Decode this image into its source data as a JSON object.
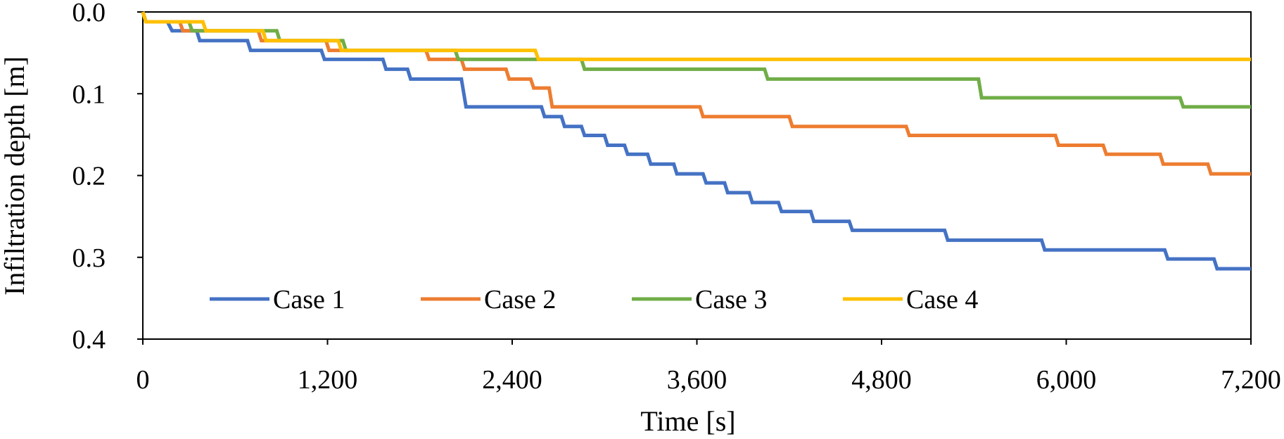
{
  "chart_data": {
    "type": "line",
    "line_style": "step",
    "xlabel": "Time [s]",
    "ylabel": "Infiltration depth [m]",
    "xlim": [
      0,
      7200
    ],
    "ylim": [
      0,
      0.4
    ],
    "y_inverted": true,
    "x_ticks": [
      0,
      1200,
      2400,
      3600,
      4800,
      6000,
      7200
    ],
    "x_tick_labels": [
      "0",
      "1,200",
      "2,400",
      "3,600",
      "4,800",
      "6,000",
      "7,200"
    ],
    "y_ticks": [
      0,
      0.1,
      0.2,
      0.3,
      0.4
    ],
    "y_tick_labels": [
      "0.0",
      "0.1",
      "0.2",
      "0.3",
      "0.4"
    ],
    "grid": false,
    "legend_position": "bottom-inside",
    "series": [
      {
        "name": "Case 1",
        "color": "#4472C4",
        "points": [
          [
            0,
            0
          ],
          [
            20,
            0.012
          ],
          [
            160,
            0.012
          ],
          [
            190,
            0.023
          ],
          [
            350,
            0.023
          ],
          [
            370,
            0.035
          ],
          [
            680,
            0.035
          ],
          [
            700,
            0.047
          ],
          [
            1160,
            0.047
          ],
          [
            1180,
            0.058
          ],
          [
            1560,
            0.058
          ],
          [
            1580,
            0.07
          ],
          [
            1720,
            0.07
          ],
          [
            1740,
            0.082
          ],
          [
            2070,
            0.082
          ],
          [
            2100,
            0.116
          ],
          [
            2590,
            0.116
          ],
          [
            2610,
            0.128
          ],
          [
            2720,
            0.128
          ],
          [
            2740,
            0.14
          ],
          [
            2850,
            0.14
          ],
          [
            2870,
            0.151
          ],
          [
            3000,
            0.151
          ],
          [
            3020,
            0.163
          ],
          [
            3130,
            0.163
          ],
          [
            3150,
            0.174
          ],
          [
            3280,
            0.174
          ],
          [
            3300,
            0.186
          ],
          [
            3450,
            0.186
          ],
          [
            3470,
            0.198
          ],
          [
            3640,
            0.198
          ],
          [
            3660,
            0.209
          ],
          [
            3780,
            0.209
          ],
          [
            3800,
            0.221
          ],
          [
            3940,
            0.221
          ],
          [
            3960,
            0.233
          ],
          [
            4130,
            0.233
          ],
          [
            4150,
            0.244
          ],
          [
            4340,
            0.244
          ],
          [
            4360,
            0.256
          ],
          [
            4590,
            0.256
          ],
          [
            4610,
            0.267
          ],
          [
            5210,
            0.267
          ],
          [
            5230,
            0.279
          ],
          [
            5840,
            0.279
          ],
          [
            5860,
            0.291
          ],
          [
            6640,
            0.291
          ],
          [
            6660,
            0.302
          ],
          [
            6960,
            0.302
          ],
          [
            6980,
            0.314
          ],
          [
            7200,
            0.314
          ]
        ]
      },
      {
        "name": "Case 2",
        "color": "#ED7D31",
        "points": [
          [
            0,
            0
          ],
          [
            20,
            0.012
          ],
          [
            240,
            0.012
          ],
          [
            260,
            0.023
          ],
          [
            750,
            0.023
          ],
          [
            770,
            0.035
          ],
          [
            1190,
            0.035
          ],
          [
            1210,
            0.047
          ],
          [
            1840,
            0.047
          ],
          [
            1860,
            0.058
          ],
          [
            2070,
            0.058
          ],
          [
            2090,
            0.07
          ],
          [
            2360,
            0.07
          ],
          [
            2380,
            0.082
          ],
          [
            2520,
            0.082
          ],
          [
            2540,
            0.093
          ],
          [
            2640,
            0.093
          ],
          [
            2660,
            0.116
          ],
          [
            3620,
            0.116
          ],
          [
            3640,
            0.128
          ],
          [
            4200,
            0.128
          ],
          [
            4220,
            0.14
          ],
          [
            4960,
            0.14
          ],
          [
            4980,
            0.151
          ],
          [
            5930,
            0.151
          ],
          [
            5950,
            0.163
          ],
          [
            6240,
            0.163
          ],
          [
            6260,
            0.174
          ],
          [
            6610,
            0.174
          ],
          [
            6630,
            0.186
          ],
          [
            6920,
            0.186
          ],
          [
            6940,
            0.198
          ],
          [
            7200,
            0.198
          ]
        ]
      },
      {
        "name": "Case 3",
        "color": "#70AD47",
        "points": [
          [
            0,
            0
          ],
          [
            20,
            0.012
          ],
          [
            300,
            0.012
          ],
          [
            320,
            0.023
          ],
          [
            870,
            0.023
          ],
          [
            890,
            0.035
          ],
          [
            1300,
            0.035
          ],
          [
            1320,
            0.047
          ],
          [
            2030,
            0.047
          ],
          [
            2050,
            0.058
          ],
          [
            2850,
            0.058
          ],
          [
            2870,
            0.07
          ],
          [
            4040,
            0.07
          ],
          [
            4060,
            0.082
          ],
          [
            5430,
            0.082
          ],
          [
            5450,
            0.105
          ],
          [
            6740,
            0.105
          ],
          [
            6760,
            0.116
          ],
          [
            7200,
            0.116
          ]
        ]
      },
      {
        "name": "Case 4",
        "color": "#FFC000",
        "points": [
          [
            0,
            0
          ],
          [
            20,
            0.012
          ],
          [
            390,
            0.012
          ],
          [
            410,
            0.023
          ],
          [
            780,
            0.023
          ],
          [
            800,
            0.035
          ],
          [
            1270,
            0.035
          ],
          [
            1290,
            0.047
          ],
          [
            2550,
            0.047
          ],
          [
            2570,
            0.058
          ],
          [
            7200,
            0.058
          ]
        ]
      }
    ]
  }
}
